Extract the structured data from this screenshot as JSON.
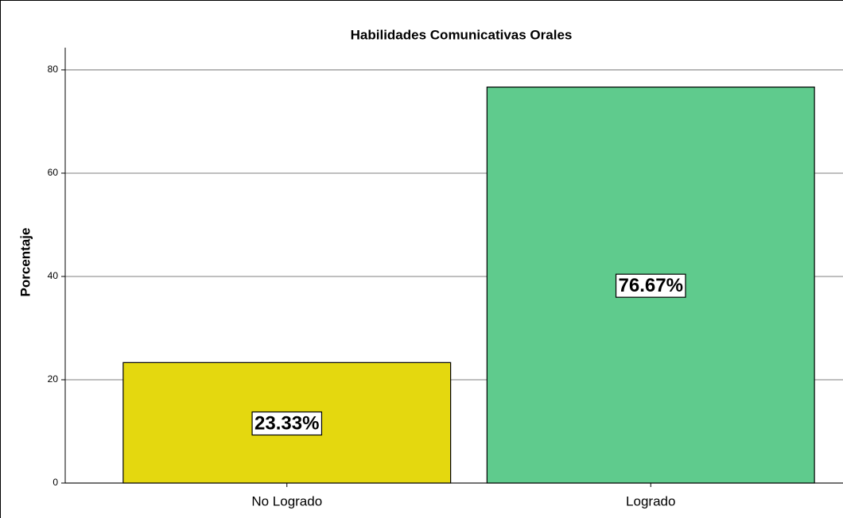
{
  "chart_data": {
    "type": "bar",
    "title": "Habilidades Comunicativas Orales",
    "y_label": "Porcentaje",
    "categories": [
      "No Logrado",
      "Logrado"
    ],
    "values": [
      23.33,
      76.67
    ],
    "value_labels": [
      "23.33%",
      "76.67%"
    ],
    "colors": [
      "#e4d80f",
      "#5fcb8d"
    ],
    "ylim": [
      0,
      84.3
    ],
    "yticks": [
      0,
      20,
      40,
      60,
      80
    ],
    "grid": true
  }
}
